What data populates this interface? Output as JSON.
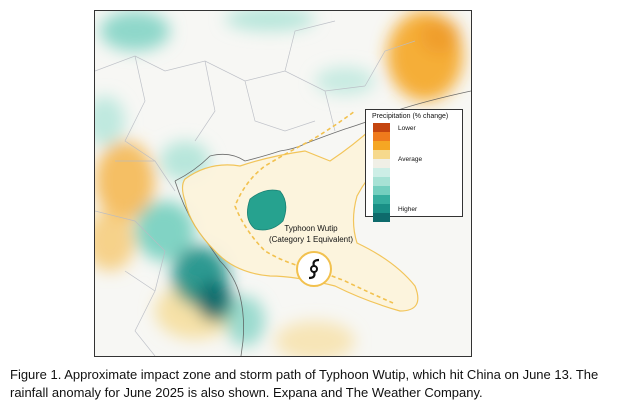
{
  "map": {
    "legend": {
      "title": "Precipitation (% change)",
      "label_lower": "Lower",
      "label_average": "Average",
      "label_higher": "Higher",
      "colors": [
        "#c4450f",
        "#ef7a1c",
        "#f5a623",
        "#f6d98d",
        "#f0efe6",
        "#cdeee6",
        "#a7e2d5",
        "#74cfbf",
        "#35ad9e",
        "#1a8f86",
        "#0e6a6b"
      ]
    },
    "storm": {
      "name": "Typhoon Wutip",
      "category": "(Category 1 Equivalent)",
      "icon": "typhoon-icon",
      "track_color": "#f2c14e",
      "zone_color": "#fdf4dc"
    }
  },
  "caption": "Figure 1. Approximate impact zone and storm path of Typhoon Wutip, which hit China on June 13. The rainfall anomaly for June 2025 is also shown. Expana and The Weather Company."
}
